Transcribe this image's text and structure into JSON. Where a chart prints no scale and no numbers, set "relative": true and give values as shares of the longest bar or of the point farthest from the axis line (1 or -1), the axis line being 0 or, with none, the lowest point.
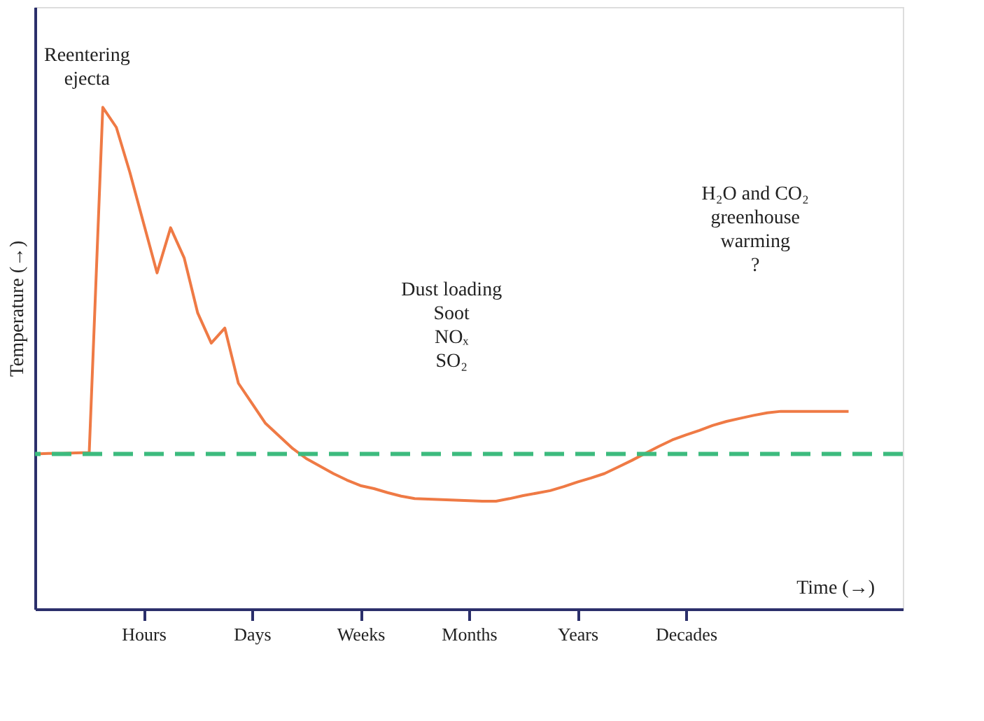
{
  "chart_data": {
    "type": "line",
    "relative": true,
    "xlabel": "Time (→)",
    "ylabel": "Temperature (→)",
    "categories": [
      null,
      null,
      null,
      null,
      null,
      null,
      null,
      null,
      "Hours",
      null,
      null,
      null,
      null,
      null,
      null,
      null,
      "Days",
      null,
      null,
      null,
      null,
      null,
      null,
      null,
      "Weeks",
      null,
      null,
      null,
      null,
      null,
      null,
      null,
      "Months",
      null,
      null,
      null,
      null,
      null,
      null,
      null,
      "Years",
      null,
      null,
      null,
      null,
      null,
      null,
      null,
      "Decades",
      null,
      null,
      null,
      null,
      null,
      null,
      null,
      null,
      null,
      null,
      null,
      null,
      null,
      null,
      null,
      null
    ],
    "series": [
      {
        "color": "#ef7a45",
        "values": [
          0.309,
          0.31,
          0.31,
          0.311,
          0.312,
          1.0,
          0.96,
          0.87,
          0.77,
          0.67,
          0.76,
          0.7,
          0.59,
          0.53,
          0.56,
          0.45,
          0.41,
          0.37,
          0.345,
          0.32,
          0.3,
          0.285,
          0.27,
          0.257,
          0.246,
          0.24,
          0.232,
          0.225,
          0.22,
          0.219,
          0.218,
          0.217,
          0.216,
          0.215,
          0.215,
          0.22,
          0.226,
          0.231,
          0.236,
          0.244,
          0.253,
          0.261,
          0.27,
          0.283,
          0.296,
          0.31,
          0.324,
          0.337,
          0.347,
          0.356,
          0.366,
          0.374,
          0.38,
          0.386,
          0.391,
          0.394,
          0.394,
          0.394,
          0.394,
          0.394,
          0.394,
          null,
          null,
          null,
          null
        ]
      }
    ],
    "ref_lines": [
      {
        "axis": "y",
        "value": 0.309,
        "color": "#3dbb7e",
        "line_style": "dashed"
      }
    ],
    "annotations": [
      "Reentering\nejecta",
      "Dust loading\nSoot\nNOₓ\nSO₂",
      "H₂O and CO₂\ngreenhouse\nwarming\n?"
    ],
    "tick_labels": "x",
    "marker": "none",
    "line_style": "solid"
  }
}
